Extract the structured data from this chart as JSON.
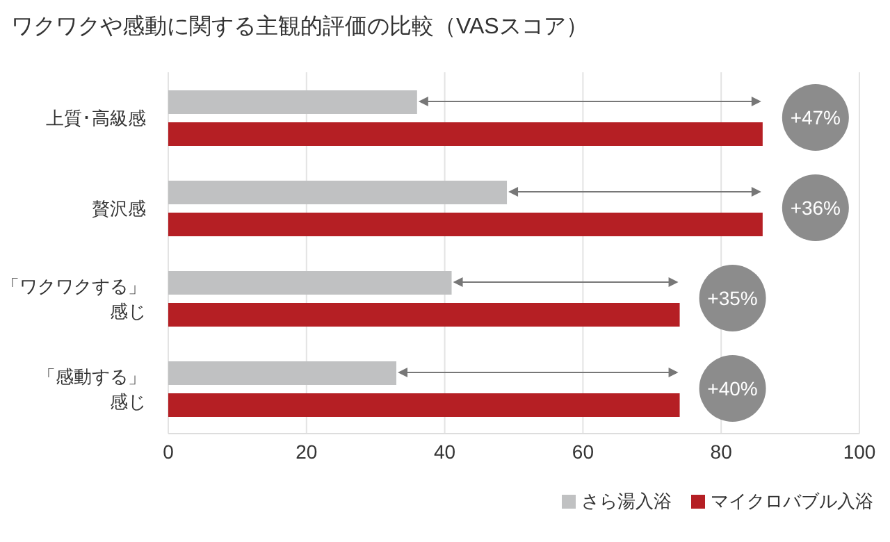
{
  "chart_data": {
    "type": "bar",
    "orientation": "horizontal",
    "title": "ワクワクや感動に関する主観的評価の比較（VASスコア）",
    "categories": [
      "上質･高級感",
      "贅沢感",
      "「ワクワクする」感じ",
      "「感動する」感じ"
    ],
    "series": [
      {
        "name": "さら湯入浴",
        "color": "#c0c1c2",
        "values": [
          36,
          49,
          41,
          33
        ]
      },
      {
        "name": "マイクロバブル入浴",
        "color": "#b51f24",
        "values": [
          86,
          86,
          74,
          74
        ]
      }
    ],
    "xlim": [
      0,
      100
    ],
    "xticks": [
      0,
      20,
      40,
      60,
      80,
      100
    ],
    "grid": "x",
    "legend": "bottom right",
    "annotations": [
      "+47%",
      "+36%",
      "+35%",
      "+40%"
    ]
  }
}
